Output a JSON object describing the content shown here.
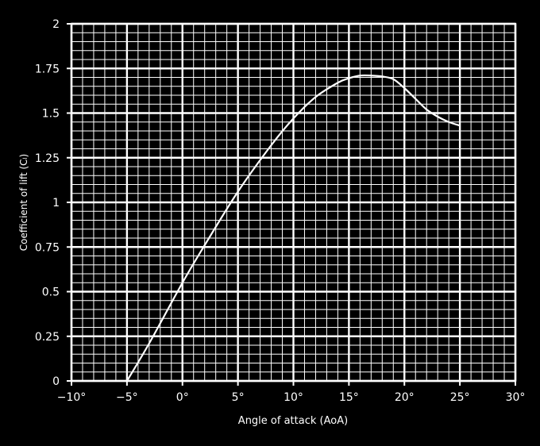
{
  "chart_data": {
    "type": "line",
    "title": "",
    "xlabel": "Angle of attack (AoA)",
    "ylabel": "Coefficient of lift (Cₗ)",
    "xlim": [
      -10,
      30
    ],
    "ylim": [
      0,
      2
    ],
    "grid": true,
    "minor_grid": true,
    "legend": "none",
    "x_ticks": [
      -10,
      -5,
      0,
      5,
      10,
      15,
      20,
      25,
      30
    ],
    "x_tick_labels": [
      "−10°",
      "−5°",
      "0°",
      "5°",
      "10°",
      "15°",
      "20°",
      "25°",
      "30°"
    ],
    "y_ticks": [
      0,
      0.25,
      0.5,
      0.75,
      1,
      1.25,
      1.5,
      1.75,
      2
    ],
    "y_tick_labels": [
      "0",
      "0.25",
      "0.5",
      "0.75",
      "1",
      "1.25",
      "1.5",
      "1.75",
      "2"
    ],
    "series": [
      {
        "color": "#ffffff",
        "x": [
          -5,
          -3,
          0,
          2,
          5,
          8,
          10,
          12,
          14,
          15,
          16,
          17,
          18,
          19,
          20,
          21,
          22,
          23,
          24,
          25
        ],
        "y": [
          0,
          0.21,
          0.55,
          0.76,
          1.06,
          1.32,
          1.47,
          1.59,
          1.67,
          1.695,
          1.71,
          1.71,
          1.705,
          1.69,
          1.64,
          1.58,
          1.52,
          1.48,
          1.45,
          1.43
        ]
      }
    ]
  }
}
